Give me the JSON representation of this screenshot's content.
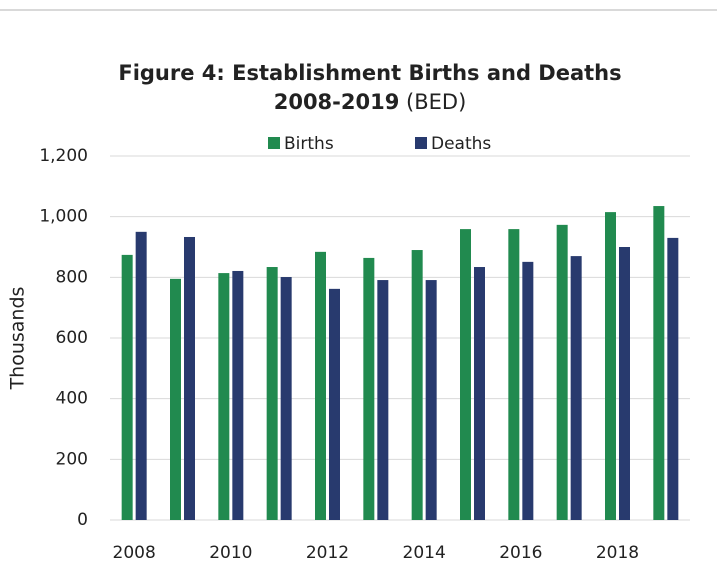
{
  "chart_data": {
    "type": "bar",
    "title": "Figure 4: Establishment Births and Deaths",
    "title_line2": "2008-2019",
    "title_note": "(BED)",
    "y_label": "Thousands",
    "categories": [
      "2008",
      null,
      "2010",
      null,
      "2012",
      null,
      "2014",
      null,
      "2016",
      null,
      "2018",
      null
    ],
    "series": [
      {
        "name": "Births",
        "color": "#218a4f",
        "values": [
          874,
          795,
          814,
          834,
          884,
          864,
          890,
          959,
          959,
          973,
          1015,
          1035
        ]
      },
      {
        "name": "Deaths",
        "color": "#283a6e",
        "values": [
          950,
          933,
          821,
          801,
          762,
          791,
          791,
          834,
          851,
          870,
          900,
          930
        ]
      }
    ],
    "ylim": [
      0,
      1200
    ],
    "yticks": [
      0,
      200,
      400,
      600,
      800,
      {
        "value": 1000,
        "label": "1,000"
      },
      {
        "value": 1200,
        "label": "1,200"
      }
    ],
    "grid": true,
    "legend": "top"
  }
}
